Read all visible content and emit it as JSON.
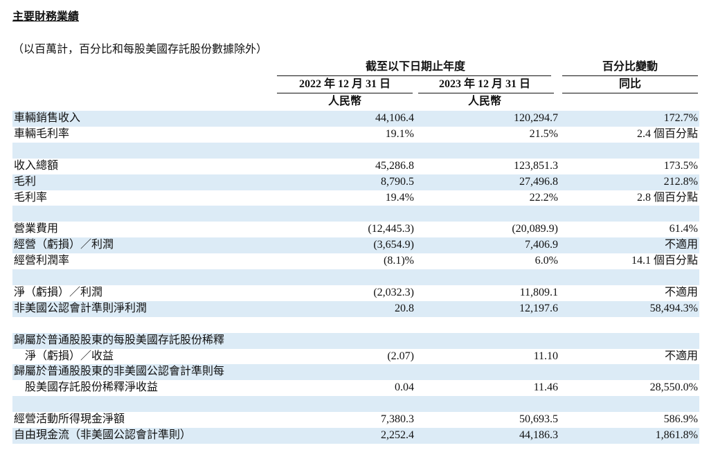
{
  "header": {
    "title": "主要財務業績",
    "subtitle": "（以百萬計，百分比和每股美國存託股份數據除外）"
  },
  "table": {
    "period_header": "截至以下日期止年度",
    "change_header": "百分比變動",
    "columns": [
      "2022 年 12 月 31 日",
      "2023 年 12 月 31 日",
      "同比"
    ],
    "currency": [
      "人民幣",
      "人民幣"
    ],
    "groups": [
      [
        {
          "label": [
            "車輛銷售收入"
          ],
          "cells": [
            "44,106.4",
            "120,294.7",
            "172.7%"
          ]
        },
        {
          "label": [
            "車輛毛利率"
          ],
          "cells": [
            "19.1%",
            "21.5%",
            "2.4 個百分點"
          ]
        }
      ],
      [
        {
          "label": [
            "收入總額"
          ],
          "cells": [
            "45,286.8",
            "123,851.3",
            "173.5%"
          ]
        },
        {
          "label": [
            "毛利"
          ],
          "cells": [
            "8,790.5",
            "27,496.8",
            "212.8%"
          ]
        },
        {
          "label": [
            "毛利率"
          ],
          "cells": [
            "19.4%",
            "22.2%",
            "2.8 個百分點"
          ]
        }
      ],
      [
        {
          "label": [
            "營業費用"
          ],
          "cells": [
            "(12,445.3)",
            "(20,089.9)",
            "61.4%"
          ]
        },
        {
          "label": [
            "經營（虧損）／利潤"
          ],
          "cells": [
            "(3,654.9)",
            "7,406.9",
            "不適用"
          ]
        },
        {
          "label": [
            "經營利潤率"
          ],
          "cells": [
            "(8.1)%",
            "6.0%",
            "14.1 個百分點"
          ]
        }
      ],
      [
        {
          "label": [
            "淨（虧損）／利潤"
          ],
          "cells": [
            "(2,032.3)",
            "11,809.1",
            "不適用"
          ]
        },
        {
          "label": [
            "非美國公認會計準則淨利潤"
          ],
          "cells": [
            "20.8",
            "12,197.6",
            "58,494.3%"
          ]
        }
      ],
      [
        {
          "label": [
            "歸屬於普通股股東的每股美國存託股份稀釋",
            "淨（虧損）／收益"
          ],
          "cells": [
            "(2.07)",
            "11.10",
            "不適用"
          ]
        },
        {
          "label": [
            "歸屬於普通股股東的非美國公認會計準則每",
            "股美國存託股份稀釋淨收益"
          ],
          "cells": [
            "0.04",
            "11.46",
            "28,550.0%"
          ]
        }
      ],
      [
        {
          "label": [
            "經營活動所得現金淨額"
          ],
          "cells": [
            "7,380.3",
            "50,693.5",
            "586.9%"
          ]
        },
        {
          "label": [
            "自由現金流（非美國公認會計準則）"
          ],
          "cells": [
            "2,252.4",
            "44,186.3",
            "1,861.8%"
          ]
        }
      ]
    ]
  }
}
